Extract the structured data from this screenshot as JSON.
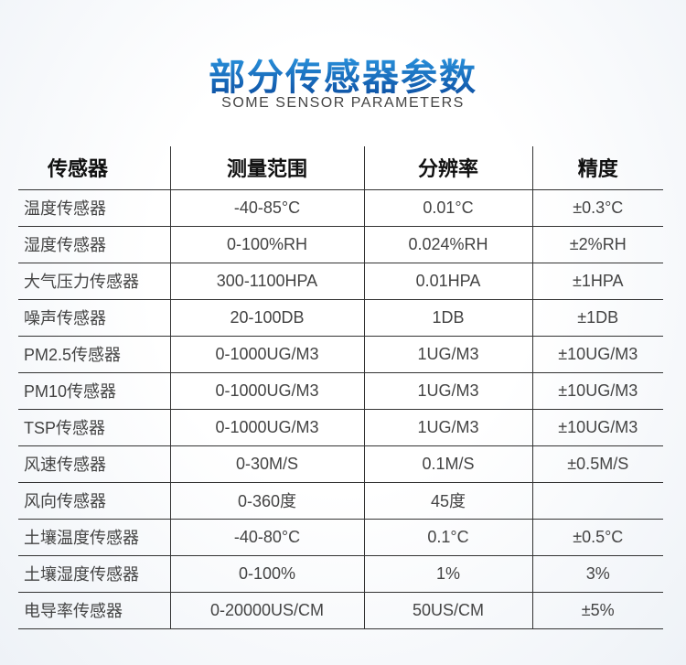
{
  "title": "部分传感器参数",
  "subtitle": "SOME SENSOR PARAMETERS",
  "headers": [
    "传感器",
    "测量范围",
    "分辨率",
    "精度"
  ],
  "rows": [
    [
      "温度传感器",
      "-40-85°C",
      "0.01°C",
      "±0.3°C"
    ],
    [
      "湿度传感器",
      "0-100%RH",
      "0.024%RH",
      "±2%RH"
    ],
    [
      "大气压力传感器",
      "300-1100HPA",
      "0.01HPA",
      "±1HPA"
    ],
    [
      "噪声传感器",
      "20-100DB",
      "1DB",
      "±1DB"
    ],
    [
      "PM2.5传感器",
      "0-1000UG/M3",
      "1UG/M3",
      "±10UG/M3"
    ],
    [
      "PM10传感器",
      "0-1000UG/M3",
      "1UG/M3",
      "±10UG/M3"
    ],
    [
      "TSP传感器",
      "0-1000UG/M3",
      "1UG/M3",
      "±10UG/M3"
    ],
    [
      "风速传感器",
      "0-30M/S",
      "0.1M/S",
      "±0.5M/S"
    ],
    [
      "风向传感器",
      "0-360度",
      "45度",
      ""
    ],
    [
      "土壤温度传感器",
      "-40-80°C",
      "0.1°C",
      "±0.5°C"
    ],
    [
      "土壤湿度传感器",
      "0-100%",
      "1%",
      "3%"
    ],
    [
      "电导率传感器",
      "0-20000US/CM",
      "50US/CM",
      "±5%"
    ]
  ]
}
